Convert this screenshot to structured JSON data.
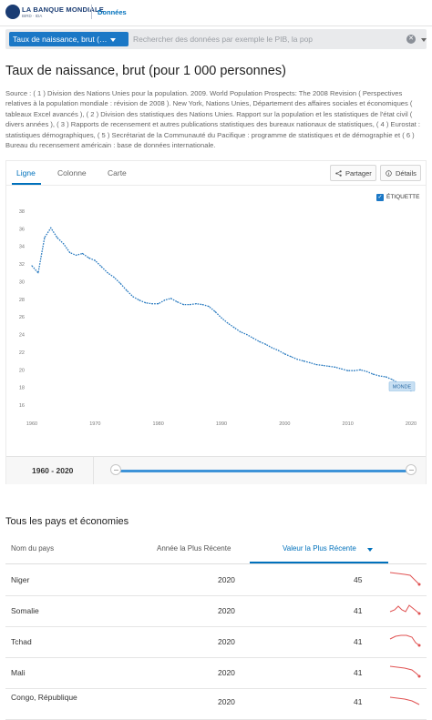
{
  "header": {
    "logo_text": "LA BANQUE MONDIALE",
    "logo_sub": "BIRD · IDA",
    "section": "Données"
  },
  "search": {
    "tag_label": "Taux de naissance, brut (…",
    "placeholder": "Rechercher des données par exemple le PIB, la pop"
  },
  "page": {
    "title": "Taux de naissance, brut (pour 1 000 personnes)",
    "source": "Source : ( 1 ) Division des Nations Unies pour la population. 2009. World Population Prospects: The 2008 Revision ( Perspectives relatives à la population mondiale : révision de 2008 ). New York, Nations Unies, Département des affaires sociales et économiques ( tableaux Excel avancés ), ( 2 ) Division des statistiques des Nations Unies. Rapport sur la population et les statistiques de l'état civil ( divers années ), ( 3 ) Rapports de recensement et autres publications statistiques des bureaux nationaux de statistiques, ( 4 ) Eurostat : statistiques démographiques, ( 5 ) Secrétariat de la Communauté du Pacifique : programme de statistiques et de démographie et ( 6 ) Bureau du recensement américain : base de données internationale."
  },
  "chart_tabs": {
    "ligne": "Ligne",
    "colonne": "Colonne",
    "carte": "Carte",
    "share": "Partager",
    "details": "Détails",
    "label_toggle": "ÉTIQUETTE"
  },
  "chart_data": {
    "type": "line",
    "x": [
      1960,
      1961,
      1962,
      1963,
      1964,
      1965,
      1966,
      1967,
      1968,
      1969,
      1970,
      1971,
      1972,
      1973,
      1974,
      1975,
      1976,
      1977,
      1978,
      1979,
      1980,
      1981,
      1982,
      1983,
      1984,
      1985,
      1986,
      1987,
      1988,
      1989,
      1990,
      1991,
      1992,
      1993,
      1994,
      1995,
      1996,
      1997,
      1998,
      1999,
      2000,
      2001,
      2002,
      2003,
      2004,
      2005,
      2006,
      2007,
      2008,
      2009,
      2010,
      2011,
      2012,
      2013,
      2014,
      2015,
      2016,
      2017,
      2018,
      2019,
      2020
    ],
    "series": [
      {
        "name": "MONDE",
        "values": [
          31.8,
          31.0,
          35.0,
          36.1,
          35.0,
          34.3,
          33.3,
          33.0,
          33.2,
          32.7,
          32.4,
          31.7,
          31.0,
          30.5,
          29.8,
          29.0,
          28.3,
          27.9,
          27.6,
          27.5,
          27.5,
          27.9,
          28.1,
          27.7,
          27.4,
          27.4,
          27.5,
          27.4,
          27.2,
          26.6,
          25.9,
          25.3,
          24.8,
          24.3,
          24.0,
          23.6,
          23.2,
          22.9,
          22.5,
          22.2,
          21.8,
          21.5,
          21.2,
          21.0,
          20.8,
          20.6,
          20.5,
          20.4,
          20.3,
          20.1,
          19.9,
          19.9,
          20.0,
          19.8,
          19.5,
          19.3,
          19.2,
          18.9,
          18.5,
          18.1,
          17.6
        ]
      }
    ],
    "end_label": "MONDE",
    "x_ticks": [
      "1960",
      "1970",
      "1980",
      "1990",
      "2000",
      "2010",
      "2020"
    ],
    "y_ticks": [
      "16",
      "18",
      "20",
      "22",
      "24",
      "26",
      "28",
      "30",
      "32",
      "34",
      "36",
      "38"
    ],
    "ylim": [
      16,
      38
    ],
    "xlim": [
      1960,
      2020
    ],
    "grid": false,
    "color": "#2a7bc0"
  },
  "range": {
    "label_start": "1960",
    "label_sep": " - ",
    "label_end": "2020"
  },
  "table": {
    "section_title": "Tous les pays et économies",
    "headers": {
      "country": "Nom du pays",
      "year": "Année la Plus Récente",
      "value": "Valeur la Plus Récente"
    },
    "rows": [
      {
        "country": "Niger",
        "year": "2020",
        "value": "45"
      },
      {
        "country": "Somalie",
        "year": "2020",
        "value": "41"
      },
      {
        "country": "Tchad",
        "year": "2020",
        "value": "41"
      },
      {
        "country": "Mali",
        "year": "2020",
        "value": "41"
      },
      {
        "country": "Congo, République",
        "year": "2020",
        "value": "41"
      }
    ],
    "spark_color": "#e05252"
  }
}
